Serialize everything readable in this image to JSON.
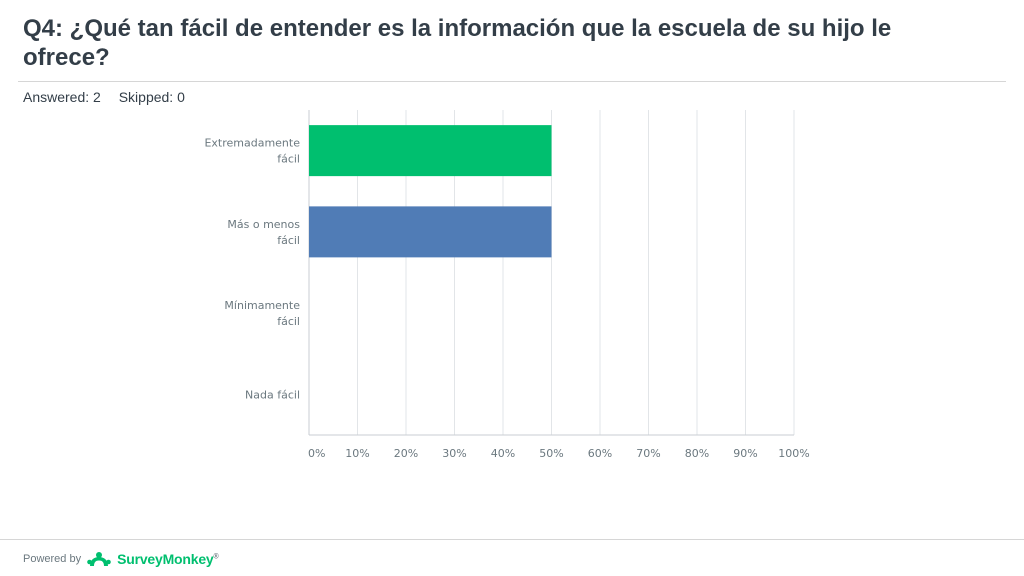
{
  "page": {
    "title": "Q4: ¿Qué tan fácil de entender es la información que la escuela de su hijo le ofrece?",
    "answered": "Answered: 2",
    "skipped": "Skipped: 0"
  },
  "footer": {
    "powered_by": "Powered by",
    "brand": "SurveyMonkey",
    "trademark": "®",
    "logo_icon": "surveymonkey-logo-icon"
  },
  "colors": {
    "bar_green": "#00bf6f",
    "bar_blue": "#507cb6",
    "grid": "#e2e5e8",
    "axis": "#c9ced3",
    "tick_text": "#6b787f",
    "brand": "#00bf6f"
  },
  "chart_data": {
    "type": "bar",
    "orientation": "horizontal",
    "categories": [
      [
        "Extremadamente",
        "fácil"
      ],
      [
        "Más o menos",
        "fácil"
      ],
      [
        "Mínimamente",
        "fácil"
      ],
      [
        "Nada fácil"
      ]
    ],
    "values": [
      50,
      50,
      0,
      0
    ],
    "bar_colors": [
      "#00bf6f",
      "#507cb6",
      "#00bf6f",
      "#507cb6"
    ],
    "xticks": [
      "0%",
      "10%",
      "20%",
      "30%",
      "40%",
      "50%",
      "60%",
      "70%",
      "80%",
      "90%",
      "100%"
    ],
    "xlim": [
      0,
      100
    ],
    "grid": true,
    "legend": "none",
    "title": "",
    "xlabel": "",
    "ylabel": ""
  }
}
